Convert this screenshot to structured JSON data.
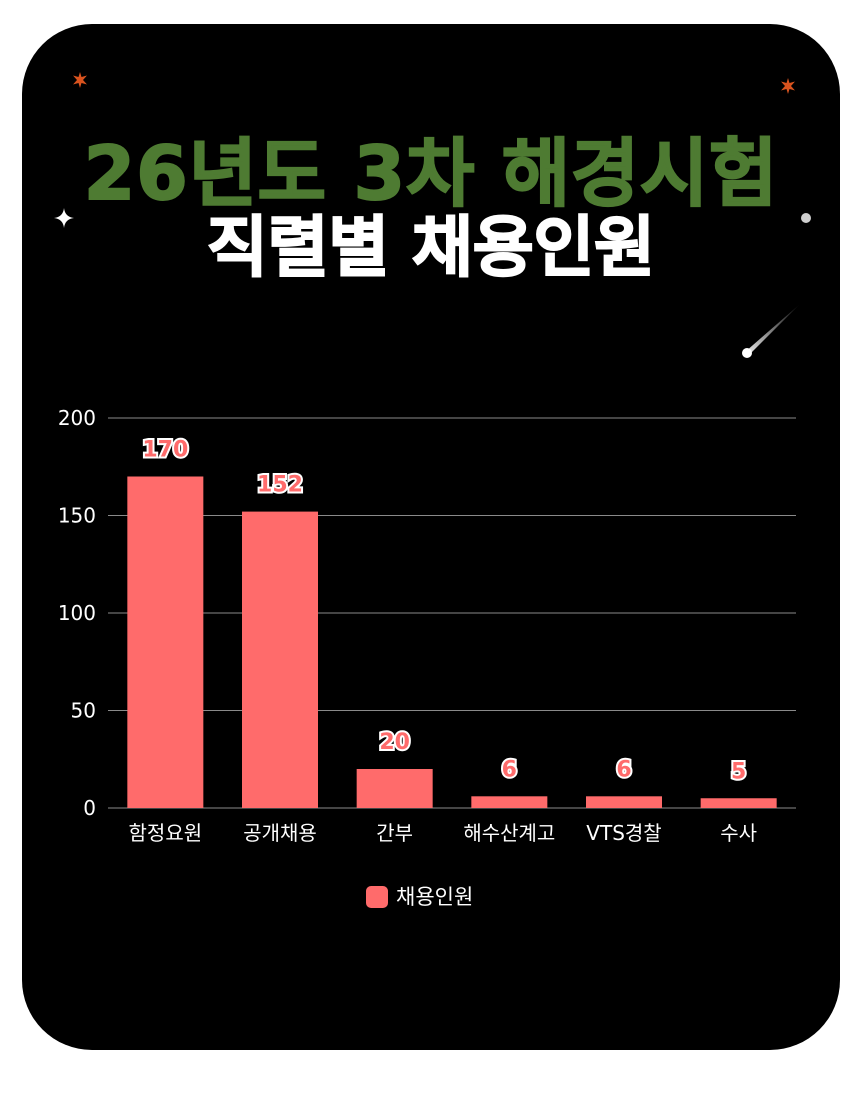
{
  "title_line1": "26년도 3차 해경시험",
  "title_line2": "직렬별 채용인원",
  "colors": {
    "background": "#000000",
    "title_green": "#4e7b32",
    "title_white": "#ffffff",
    "bar": "#ff6b6b",
    "label_outline": "#ffffff",
    "gridline": "#8a8a8a",
    "axis_text": "#ffffff",
    "sparkle_orange": "#d9531e"
  },
  "chart_data": {
    "type": "bar",
    "categories": [
      "함정요원",
      "공개채용",
      "간부",
      "해수산계고",
      "VTS경찰",
      "수사"
    ],
    "series": [
      {
        "name": "채용인원",
        "values": [
          170,
          152,
          20,
          6,
          6,
          5
        ]
      }
    ],
    "data_labels": [
      "170",
      "152",
      "20",
      "6",
      "6",
      "5"
    ],
    "yticks": [
      "0",
      "50",
      "100",
      "150",
      "200"
    ],
    "ylim": [
      0,
      200
    ],
    "grid": true,
    "legend": "bottom-center"
  }
}
